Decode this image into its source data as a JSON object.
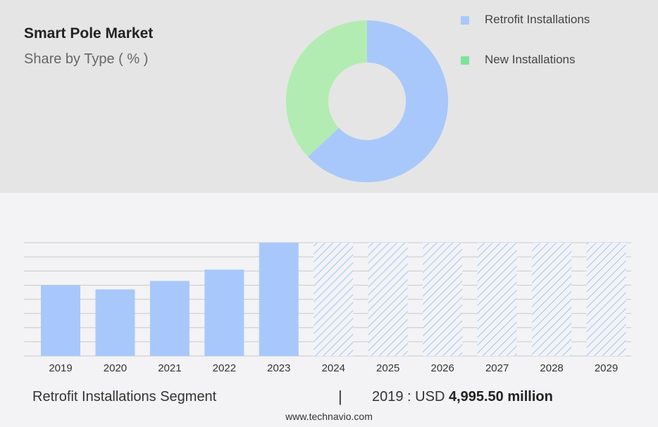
{
  "header": {
    "title": "Smart Pole Market",
    "subtitle": "Share by Type ( % )"
  },
  "colors": {
    "retrofit": "#a8c8fb",
    "new": "#b2ecb2",
    "new_swatch": "#7fe39a",
    "top_bg": "#e5e5e5",
    "bottom_bg": "#f3f3f5"
  },
  "legend": [
    {
      "label": "Retrofit Installations"
    },
    {
      "label": "New Installations"
    }
  ],
  "chart_data": [
    {
      "type": "pie",
      "subtype": "donut",
      "title": "Smart Pole Market",
      "subtitle": "Share by Type ( % )",
      "slices": [
        {
          "label": "Retrofit Installations",
          "value": 63
        },
        {
          "label": "New Installations",
          "value": 37
        }
      ]
    },
    {
      "type": "bar",
      "categories": [
        "2019",
        "2020",
        "2021",
        "2022",
        "2023",
        "2024",
        "2025",
        "2026",
        "2027",
        "2028",
        "2029"
      ],
      "values": [
        4995.5,
        4700,
        5300,
        6100,
        8000,
        8000,
        8000,
        8000,
        8000,
        8000,
        8000
      ],
      "forecast_from": "2024",
      "ylim": [
        0,
        8000
      ],
      "grid": true
    }
  ],
  "footer": {
    "segment": "Retrofit Installations Segment",
    "separator": "|",
    "value_prefix": "2019 : USD ",
    "value": "4,995.50 million",
    "brand": "www.technavio.com"
  }
}
